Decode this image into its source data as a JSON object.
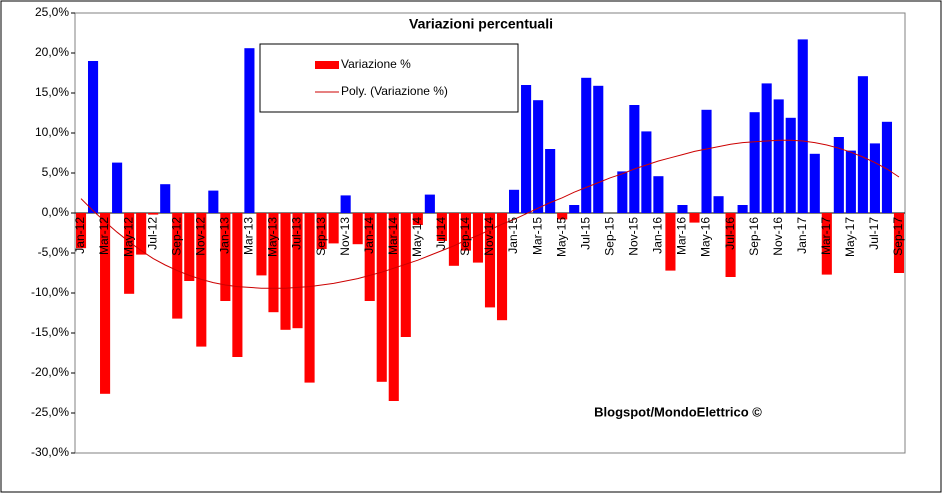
{
  "chart_data": {
    "type": "bar",
    "title": "Variazioni percentuali",
    "annotation": "Blogspot/MondoElettrico ©",
    "categories": [
      "Jan-12",
      null,
      "Mar-12",
      null,
      "May-12",
      null,
      "Jul-12",
      null,
      "Sep-12",
      null,
      "Nov-12",
      null,
      "Jan-13",
      null,
      "Mar-13",
      null,
      "May-13",
      null,
      "Jul-13",
      null,
      "Sep-13",
      null,
      "Nov-13",
      null,
      "Jan-14",
      null,
      "Mar-14",
      null,
      "May-14",
      null,
      "Jul-14",
      null,
      "Sep-14",
      null,
      "Nov-14",
      null,
      "Jan-15",
      null,
      "Mar-15",
      null,
      "May-15",
      null,
      "Jul-15",
      null,
      "Sep-15",
      null,
      "Nov-15",
      null,
      "Jan-16",
      null,
      "Mar-16",
      null,
      "May-16",
      null,
      "Jul-16",
      null,
      "Sep-16",
      null,
      "Nov-16",
      null,
      "Jan-17",
      null,
      "Mar-17",
      null,
      "May-17",
      null,
      "Jul-17",
      null,
      "Sep-17"
    ],
    "series": [
      {
        "name": "Variazione %",
        "color": "#ff0000",
        "positive_color": "#0000ff",
        "values": [
          -4.4,
          19.0,
          -22.6,
          6.3,
          -10.1,
          -5.2,
          -0.2,
          3.6,
          -13.2,
          -8.5,
          -16.7,
          2.8,
          -11.0,
          -18.0,
          20.6,
          -7.8,
          -12.4,
          -14.6,
          -14.4,
          -21.2,
          -4.5,
          -3.8,
          2.2,
          -3.9,
          -11.0,
          -21.1,
          -23.5,
          -15.5,
          -1.5,
          2.3,
          -3.5,
          -6.6,
          -4.7,
          -6.2,
          -11.8,
          -13.4,
          2.9,
          16.0,
          14.1,
          8.0,
          -0.8,
          1.0,
          16.9,
          15.9,
          0,
          5.2,
          13.5,
          10.2,
          4.6,
          -7.2,
          1.0,
          -1.2,
          12.9,
          2.1,
          -8.0,
          1.0,
          12.6,
          16.2,
          14.2,
          11.9,
          21.7,
          7.4,
          -7.7,
          9.5,
          7.8,
          17.1,
          8.7,
          11.4,
          -7.5
        ]
      },
      {
        "name": "Poly. (Variazione %)",
        "type": "line",
        "color": "#cc0000",
        "values": [
          1.8,
          0.3,
          -1.1,
          -2.4,
          -3.6,
          -4.7,
          -5.7,
          -6.5,
          -7.2,
          -7.8,
          -8.3,
          -8.7,
          -9.0,
          -9.2,
          -9.3,
          -9.4,
          -9.4,
          -9.4,
          -9.3,
          -9.2,
          -9.0,
          -8.8,
          -8.5,
          -8.2,
          -7.8,
          -7.4,
          -6.9,
          -6.4,
          -5.9,
          -5.3,
          -4.7,
          -4.1,
          -3.4,
          -2.8,
          -2.1,
          -1.4,
          -0.8,
          -0.1,
          0.6,
          1.3,
          1.9,
          2.6,
          3.2,
          3.8,
          4.4,
          4.9,
          5.5,
          6.0,
          6.5,
          6.9,
          7.3,
          7.7,
          8.0,
          8.3,
          8.6,
          8.8,
          8.9,
          9.0,
          9.1,
          9.1,
          9.0,
          8.8,
          8.5,
          8.1,
          7.6,
          7.0,
          6.3,
          5.5,
          4.5
        ]
      }
    ],
    "ylim": [
      -30,
      25
    ],
    "yticks": [
      {
        "value": -30,
        "label": "-30,0%"
      },
      {
        "value": -25,
        "label": "-25,0%"
      },
      {
        "value": -20,
        "label": "-20,0%"
      },
      {
        "value": -15,
        "label": "-15,0%"
      },
      {
        "value": -10,
        "label": "-10,0%"
      },
      {
        "value": -5,
        "label": "-5,0%"
      },
      {
        "value": 0,
        "label": "0,0%"
      },
      {
        "value": 5,
        "label": "5,0%"
      },
      {
        "value": 10,
        "label": "10,0%"
      },
      {
        "value": 15,
        "label": "15,0%"
      },
      {
        "value": 20,
        "label": "20,0%"
      },
      {
        "value": 25,
        "label": "25,0%"
      }
    ],
    "grid": false
  }
}
